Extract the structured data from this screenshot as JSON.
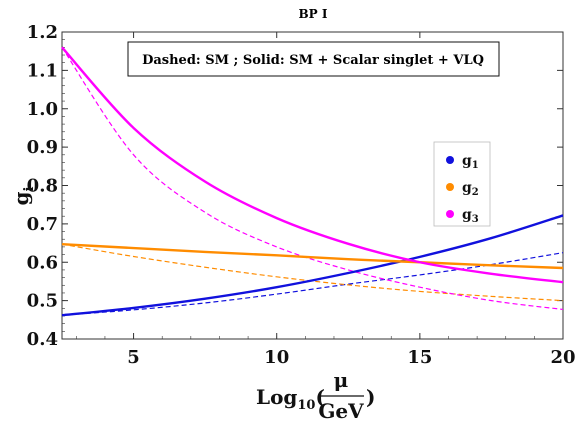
{
  "chart_data": {
    "type": "line",
    "title": "BP I",
    "xlabel": {
      "prefix": "Log",
      "sub": "10",
      "open": "(",
      "num": "μ",
      "den": "GeV",
      "close": ")"
    },
    "ylabel": {
      "main": "g",
      "sub": "i"
    },
    "xlim": [
      2.5,
      20
    ],
    "ylim": [
      0.4,
      1.2
    ],
    "xticks": [
      5,
      10,
      15,
      20
    ],
    "yticks": [
      0.4,
      0.5,
      0.6,
      0.7,
      0.8,
      0.9,
      1.0,
      1.1,
      1.2
    ],
    "ytick_labels": [
      "0.4",
      "0.5",
      "0.6",
      "0.7",
      "0.8",
      "0.9",
      "1.0",
      "1.1",
      "1.2"
    ],
    "annotation": "Dashed: SM  ;  Solid: SM + Scalar singlet + VLQ",
    "legend": {
      "position": "right-middle"
    },
    "x": [
      2.5,
      5,
      7.5,
      10,
      12.5,
      15,
      17.5,
      20
    ],
    "series": [
      {
        "name": "g1",
        "label": "g",
        "sub": "1",
        "color": "#1111dd",
        "style": "solid",
        "values": [
          0.462,
          0.481,
          0.505,
          0.535,
          0.572,
          0.614,
          0.663,
          0.722
        ]
      },
      {
        "name": "g1",
        "label": "g",
        "sub": "1",
        "color": "#1111dd",
        "style": "dashed",
        "values": [
          0.462,
          0.476,
          0.494,
          0.517,
          0.543,
          0.567,
          0.594,
          0.625
        ]
      },
      {
        "name": "g2",
        "label": "g",
        "sub": "2",
        "color": "#ff8c00",
        "style": "solid",
        "values": [
          0.647,
          0.637,
          0.627,
          0.618,
          0.608,
          0.6,
          0.592,
          0.585
        ]
      },
      {
        "name": "g2",
        "label": "g",
        "sub": "2",
        "color": "#ff8c00",
        "style": "dashed",
        "values": [
          0.647,
          0.615,
          0.587,
          0.562,
          0.541,
          0.524,
          0.511,
          0.5
        ]
      },
      {
        "name": "g3",
        "label": "g",
        "sub": "3",
        "color": "#ff00ff",
        "style": "solid",
        "values": [
          1.16,
          0.95,
          0.81,
          0.715,
          0.648,
          0.6,
          0.57,
          0.548
        ]
      },
      {
        "name": "g3",
        "label": "g",
        "sub": "3",
        "color": "#ff00ff",
        "style": "dashed",
        "values": [
          1.16,
          0.88,
          0.73,
          0.64,
          0.58,
          0.535,
          0.5,
          0.477
        ]
      }
    ]
  }
}
